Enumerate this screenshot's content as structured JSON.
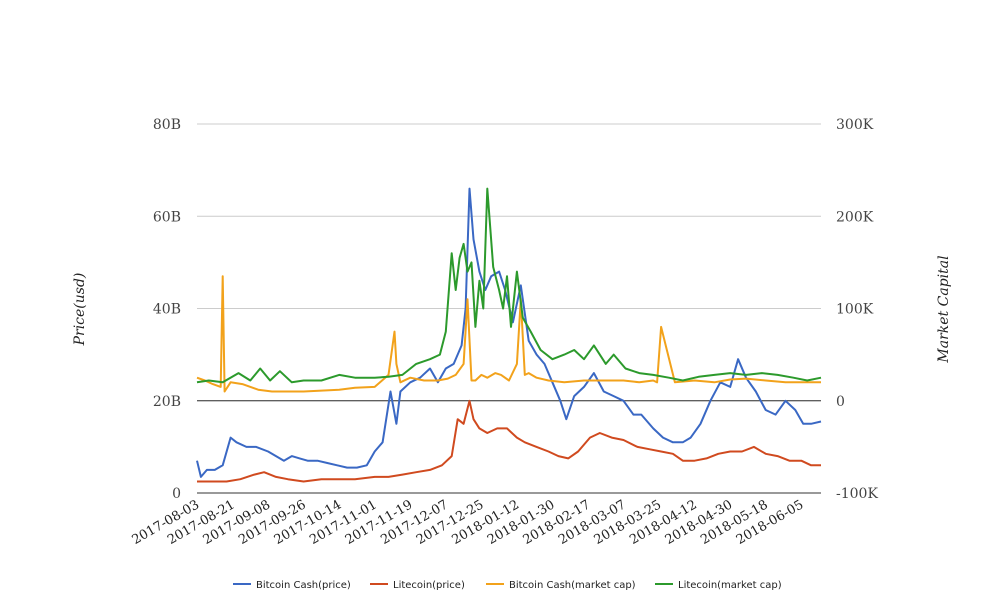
{
  "chart_data": {
    "type": "line",
    "title": "",
    "ylabel_left": "Price(usd)",
    "ylabel_right": "Market Capital",
    "left_axis": {
      "min": 0,
      "max": 80,
      "ticks": [
        0,
        20,
        40,
        60,
        80
      ],
      "tick_labels": [
        "0",
        "20B",
        "40B",
        "60B",
        "80B"
      ]
    },
    "right_axis": {
      "min": -100,
      "max": 300,
      "ticks": [
        -100,
        0,
        100,
        200,
        300
      ],
      "tick_labels": [
        "-100K",
        "0",
        "100K",
        "200K",
        "300K"
      ]
    },
    "x_tick_labels": [
      "2017-08-03",
      "2017-08-21",
      "2017-09-08",
      "2017-09-26",
      "2017-10-14",
      "2017-11-01",
      "2017-11-19",
      "2017-12-07",
      "2017-12-25",
      "2018-01-12",
      "2018-01-30",
      "2018-02-17",
      "2018-03-07",
      "2018-03-25",
      "2018-04-12",
      "2018-04-30",
      "2018-05-18",
      "2018-06-05"
    ],
    "legend_position": "bottom",
    "grid": true,
    "series": [
      {
        "name": "Bitcoin Cash(price)",
        "axis": "left",
        "color": "#3a68c4",
        "x": [
          "2017-08-03",
          "2017-08-05",
          "2017-08-08",
          "2017-08-12",
          "2017-08-16",
          "2017-08-20",
          "2017-08-23",
          "2017-08-28",
          "2017-09-02",
          "2017-09-08",
          "2017-09-12",
          "2017-09-16",
          "2017-09-20",
          "2017-09-24",
          "2017-09-28",
          "2017-10-03",
          "2017-10-08",
          "2017-10-13",
          "2017-10-18",
          "2017-10-23",
          "2017-10-28",
          "2017-11-01",
          "2017-11-05",
          "2017-11-09",
          "2017-11-12",
          "2017-11-14",
          "2017-11-19",
          "2017-11-24",
          "2017-11-29",
          "2017-12-03",
          "2017-12-07",
          "2017-12-11",
          "2017-12-15",
          "2017-12-17",
          "2017-12-19",
          "2017-12-21",
          "2017-12-24",
          "2017-12-27",
          "2017-12-30",
          "2018-01-03",
          "2018-01-06",
          "2018-01-10",
          "2018-01-14",
          "2018-01-18",
          "2018-01-22",
          "2018-01-26",
          "2018-01-30",
          "2018-02-03",
          "2018-02-06",
          "2018-02-10",
          "2018-02-15",
          "2018-02-20",
          "2018-02-25",
          "2018-03-02",
          "2018-03-07",
          "2018-03-12",
          "2018-03-16",
          "2018-03-22",
          "2018-03-27",
          "2018-04-01",
          "2018-04-06",
          "2018-04-10",
          "2018-04-15",
          "2018-04-20",
          "2018-04-25",
          "2018-04-30",
          "2018-05-04",
          "2018-05-08",
          "2018-05-13",
          "2018-05-18",
          "2018-05-23",
          "2018-05-28",
          "2018-06-02",
          "2018-06-06",
          "2018-06-10",
          "2018-06-15"
        ],
        "y": [
          7,
          3.5,
          5,
          5,
          6,
          12,
          11,
          10,
          10,
          9,
          8,
          7,
          8,
          7.5,
          7,
          7,
          6.5,
          6,
          5.5,
          5.5,
          6,
          9,
          11,
          22,
          15,
          22,
          24,
          25,
          27,
          24,
          27,
          28,
          32,
          40,
          66,
          55,
          48,
          44,
          47,
          48,
          44,
          37,
          45,
          33,
          30,
          28,
          24,
          20,
          16,
          21,
          23,
          26,
          22,
          21,
          20,
          17,
          17,
          14,
          12,
          11,
          11,
          12,
          15,
          20,
          24,
          23,
          29,
          25,
          22,
          18,
          17,
          20,
          18,
          15,
          15,
          15.5
        ]
      },
      {
        "name": "Litecoin(price)",
        "axis": "left",
        "color": "#d04a1f",
        "x": [
          "2017-08-03",
          "2017-08-10",
          "2017-08-18",
          "2017-08-25",
          "2017-09-01",
          "2017-09-06",
          "2017-09-12",
          "2017-09-18",
          "2017-09-26",
          "2017-10-05",
          "2017-10-14",
          "2017-10-22",
          "2017-11-01",
          "2017-11-08",
          "2017-11-15",
          "2017-11-22",
          "2017-11-29",
          "2017-12-05",
          "2017-12-10",
          "2017-12-13",
          "2017-12-16",
          "2017-12-19",
          "2017-12-21",
          "2017-12-24",
          "2017-12-28",
          "2018-01-02",
          "2018-01-07",
          "2018-01-12",
          "2018-01-16",
          "2018-01-22",
          "2018-01-28",
          "2018-02-02",
          "2018-02-07",
          "2018-02-12",
          "2018-02-18",
          "2018-02-23",
          "2018-03-01",
          "2018-03-07",
          "2018-03-14",
          "2018-03-20",
          "2018-03-26",
          "2018-04-01",
          "2018-04-06",
          "2018-04-12",
          "2018-04-18",
          "2018-04-24",
          "2018-04-30",
          "2018-05-06",
          "2018-05-12",
          "2018-05-18",
          "2018-05-24",
          "2018-05-30",
          "2018-06-05",
          "2018-06-10",
          "2018-06-15"
        ],
        "y": [
          2.5,
          2.5,
          2.5,
          3,
          4,
          4.5,
          3.5,
          3,
          2.5,
          3,
          3,
          3,
          3.5,
          3.5,
          4,
          4.5,
          5,
          6,
          8,
          16,
          15,
          20,
          16,
          14,
          13,
          14,
          14,
          12,
          11,
          10,
          9,
          8,
          7.5,
          9,
          12,
          13,
          12,
          11.5,
          10,
          9.5,
          9,
          8.5,
          7,
          7,
          7.5,
          8.5,
          9,
          9,
          10,
          8.5,
          8,
          7,
          7,
          6,
          6
        ]
      },
      {
        "name": "Bitcoin Cash(market cap)",
        "axis": "right",
        "color": "#f2a21b",
        "x": [
          "2017-08-03",
          "2017-08-07",
          "2017-08-11",
          "2017-08-15",
          "2017-08-16",
          "2017-08-17",
          "2017-08-20",
          "2017-08-26",
          "2017-09-03",
          "2017-09-10",
          "2017-09-18",
          "2017-09-26",
          "2017-10-05",
          "2017-10-14",
          "2017-10-22",
          "2017-11-01",
          "2017-11-08",
          "2017-11-11",
          "2017-11-12",
          "2017-11-14",
          "2017-11-19",
          "2017-11-26",
          "2017-12-03",
          "2017-12-08",
          "2017-12-12",
          "2017-12-16",
          "2017-12-18",
          "2017-12-20",
          "2017-12-22",
          "2017-12-25",
          "2017-12-28",
          "2018-01-01",
          "2018-01-04",
          "2018-01-08",
          "2018-01-12",
          "2018-01-14",
          "2018-01-16",
          "2018-01-18",
          "2018-01-22",
          "2018-01-28",
          "2018-02-05",
          "2018-02-15",
          "2018-02-25",
          "2018-03-07",
          "2018-03-15",
          "2018-03-22",
          "2018-03-24",
          "2018-03-26",
          "2018-04-02",
          "2018-04-12",
          "2018-04-22",
          "2018-04-30",
          "2018-05-08",
          "2018-05-18",
          "2018-05-28",
          "2018-06-05",
          "2018-06-15"
        ],
        "y": [
          25,
          22,
          18,
          15,
          135,
          10,
          20,
          18,
          12,
          10,
          10,
          10,
          11,
          12,
          14,
          15,
          28,
          75,
          40,
          20,
          25,
          22,
          22,
          24,
          28,
          40,
          110,
          22,
          22,
          28,
          25,
          30,
          28,
          22,
          40,
          110,
          28,
          30,
          25,
          22,
          20,
          22,
          22,
          22,
          20,
          22,
          20,
          80,
          20,
          22,
          20,
          23,
          24,
          22,
          20,
          20,
          20
        ]
      },
      {
        "name": "Litecoin(market cap)",
        "axis": "right",
        "color": "#2c9a2c",
        "x": [
          "2017-08-03",
          "2017-08-09",
          "2017-08-16",
          "2017-08-24",
          "2017-08-30",
          "2017-09-04",
          "2017-09-09",
          "2017-09-14",
          "2017-09-20",
          "2017-09-26",
          "2017-10-05",
          "2017-10-14",
          "2017-10-22",
          "2017-11-01",
          "2017-11-08",
          "2017-11-15",
          "2017-11-22",
          "2017-11-29",
          "2017-12-04",
          "2017-12-07",
          "2017-12-10",
          "2017-12-12",
          "2017-12-14",
          "2017-12-16",
          "2017-12-18",
          "2017-12-20",
          "2017-12-22",
          "2017-12-24",
          "2017-12-26",
          "2017-12-28",
          "2017-12-31",
          "2018-01-03",
          "2018-01-05",
          "2018-01-07",
          "2018-01-09",
          "2018-01-12",
          "2018-01-15",
          "2018-01-19",
          "2018-01-24",
          "2018-01-30",
          "2018-02-05",
          "2018-02-10",
          "2018-02-15",
          "2018-02-20",
          "2018-02-26",
          "2018-03-02",
          "2018-03-08",
          "2018-03-15",
          "2018-03-22",
          "2018-03-30",
          "2018-04-06",
          "2018-04-14",
          "2018-04-22",
          "2018-04-30",
          "2018-05-08",
          "2018-05-16",
          "2018-05-24",
          "2018-06-01",
          "2018-06-08",
          "2018-06-15"
        ],
        "y": [
          20,
          22,
          20,
          30,
          22,
          35,
          22,
          32,
          20,
          22,
          22,
          28,
          25,
          25,
          26,
          28,
          40,
          45,
          50,
          75,
          160,
          120,
          155,
          170,
          140,
          150,
          80,
          130,
          100,
          230,
          145,
          120,
          100,
          135,
          80,
          140,
          90,
          75,
          55,
          45,
          50,
          55,
          45,
          60,
          40,
          50,
          35,
          30,
          28,
          25,
          22,
          26,
          28,
          30,
          28,
          30,
          28,
          25,
          22,
          25
        ]
      }
    ]
  }
}
